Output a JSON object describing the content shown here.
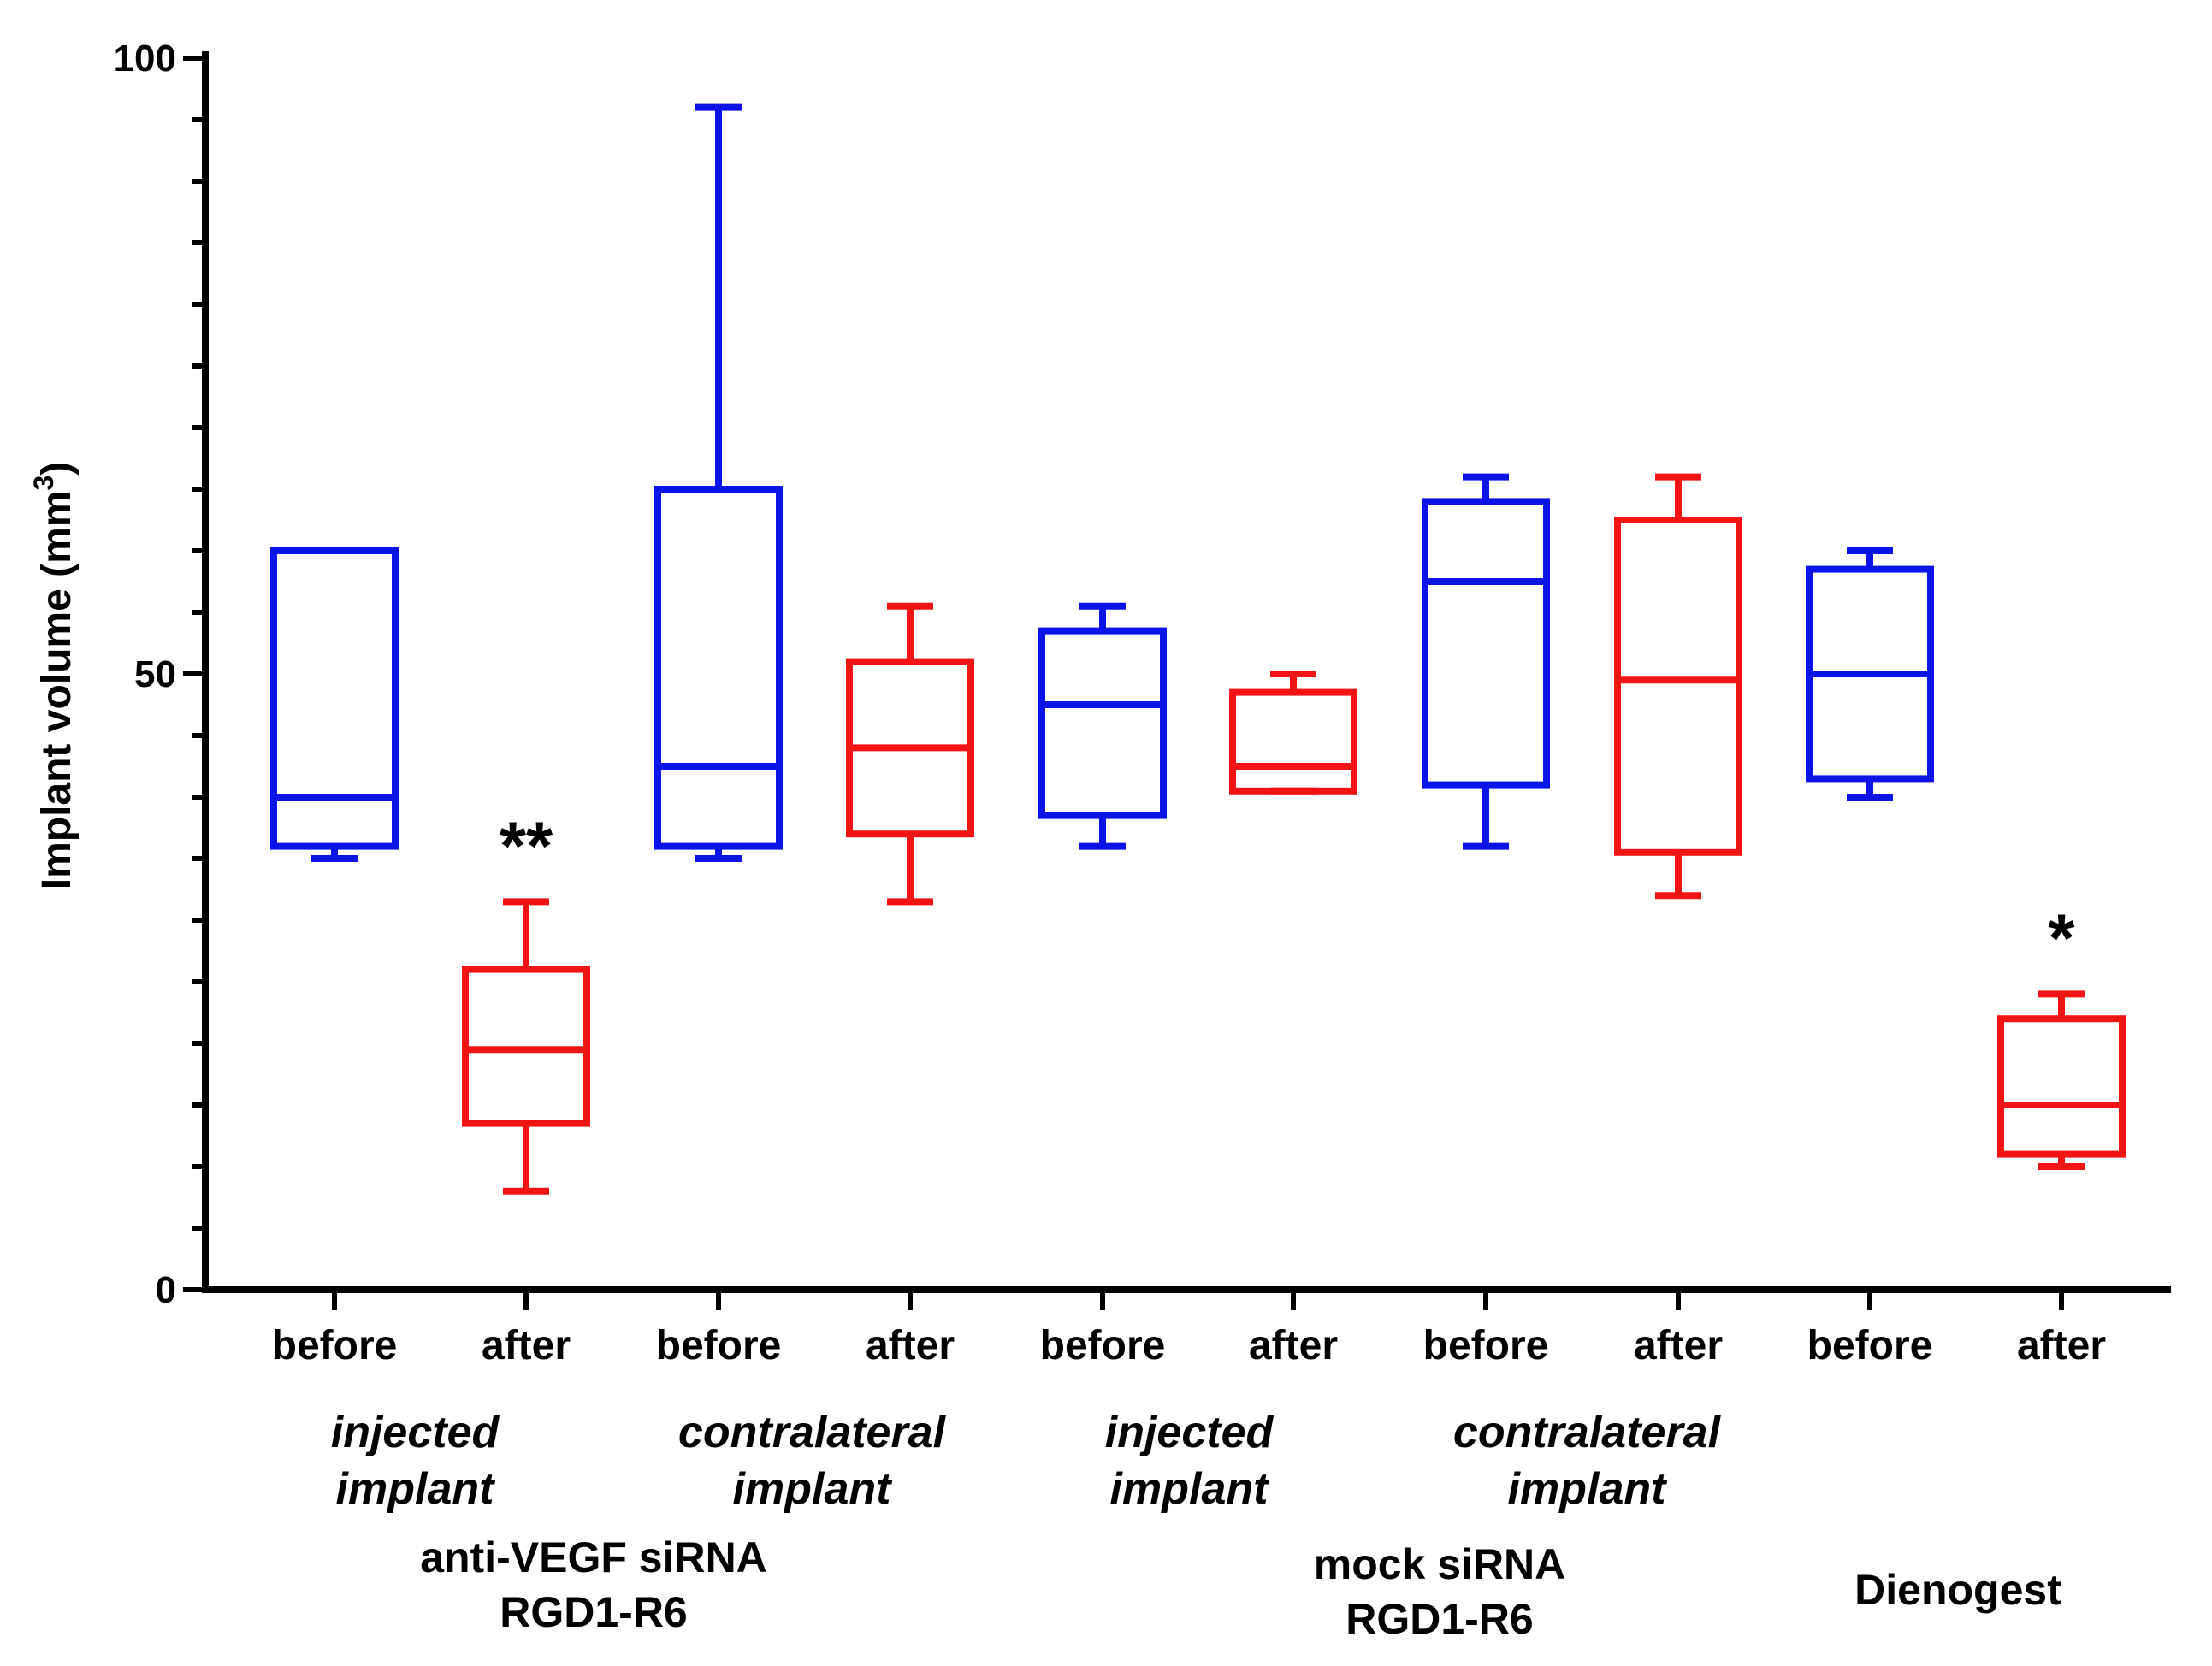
{
  "chart_data": {
    "type": "box",
    "title": "",
    "ylabel": "Implant volume (mm",
    "ylabel_superscript": "3",
    "ylabel_close": ")",
    "ylim": [
      0,
      100
    ],
    "y_ticks_labeled": [
      "0",
      "50",
      "100"
    ],
    "colors": {
      "before": "#0a14e6",
      "after": "#f01414"
    },
    "boxes": [
      {
        "category": "before",
        "phase": "before",
        "min": 35,
        "q1": 36,
        "median": 40,
        "q3": 60,
        "max": 60,
        "significance": ""
      },
      {
        "category": "after",
        "phase": "after",
        "min": 8,
        "q1": 13.5,
        "median": 19.5,
        "q3": 26,
        "max": 31.5,
        "significance": "**"
      },
      {
        "category": "before",
        "phase": "before",
        "min": 35,
        "q1": 36,
        "median": 42.5,
        "q3": 65,
        "max": 96,
        "significance": ""
      },
      {
        "category": "after",
        "phase": "after",
        "min": 31.5,
        "q1": 37,
        "median": 44,
        "q3": 51,
        "max": 55.5,
        "significance": ""
      },
      {
        "category": "before",
        "phase": "before",
        "min": 36,
        "q1": 38.5,
        "median": 47.5,
        "q3": 53.5,
        "max": 55.5,
        "significance": ""
      },
      {
        "category": "after",
        "phase": "after",
        "min": 40.5,
        "q1": 40.5,
        "median": 42.5,
        "q3": 48.5,
        "max": 50,
        "significance": ""
      },
      {
        "category": "before",
        "phase": "before",
        "min": 36,
        "q1": 41,
        "median": 57.5,
        "q3": 64,
        "max": 66,
        "significance": ""
      },
      {
        "category": "after",
        "phase": "after",
        "min": 32,
        "q1": 35.5,
        "median": 49.5,
        "q3": 62.5,
        "max": 66,
        "significance": ""
      },
      {
        "category": "before",
        "phase": "before",
        "min": 40,
        "q1": 41.5,
        "median": 50,
        "q3": 58.5,
        "max": 60,
        "significance": ""
      },
      {
        "category": "after",
        "phase": "after",
        "min": 10,
        "q1": 11,
        "median": 15,
        "q3": 22,
        "max": 24,
        "significance": "*"
      }
    ],
    "subgroups": [
      {
        "line1": "injected",
        "line2": "implant"
      },
      {
        "line1": "contralateral",
        "line2": "implant"
      },
      {
        "line1": "injected",
        "line2": "implant"
      },
      {
        "line1": "contralateral",
        "line2": "implant"
      }
    ],
    "groups": [
      {
        "line1": "anti-VEGF siRNA",
        "line2": "RGD1-R6"
      },
      {
        "line1": "mock siRNA",
        "line2": "RGD1-R6"
      },
      {
        "line1": "Dienogest",
        "line2": ""
      }
    ]
  }
}
